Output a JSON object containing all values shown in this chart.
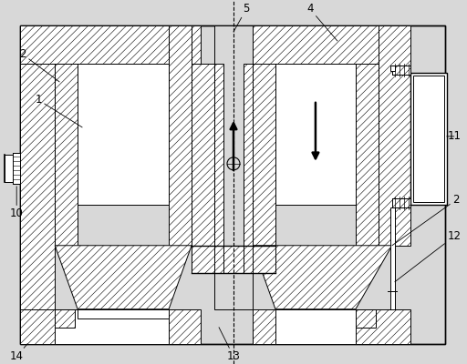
{
  "bg_color": "#d8d8d8",
  "lw": 0.7,
  "hatch_lw": 0.4,
  "label_fs": 8.5,
  "arrow_lw": 1.8,
  "arrow_ms": 12
}
